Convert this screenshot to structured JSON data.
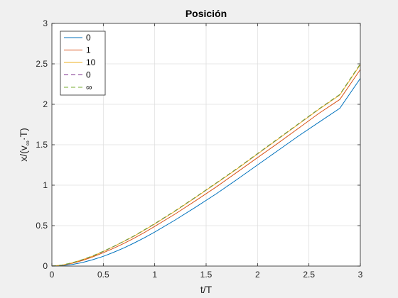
{
  "chart_data": {
    "type": "line",
    "title": "Posición",
    "xlabel": "t/T",
    "ylabel_main": "x/(v",
    "ylabel_sub": "∞",
    "ylabel_tail": "·T)",
    "xlim": [
      0,
      3
    ],
    "ylim": [
      0,
      3
    ],
    "xticks": [
      0,
      0.5,
      1,
      1.5,
      2,
      2.5,
      3
    ],
    "xtick_labels": [
      "0",
      "0.5",
      "1",
      "1.5",
      "2",
      "2.5",
      "3"
    ],
    "yticks": [
      0,
      0.5,
      1,
      1.5,
      2,
      2.5,
      3
    ],
    "ytick_labels": [
      "0",
      "0.5",
      "1",
      "1.5",
      "2",
      "2.5",
      "3"
    ],
    "grid": true,
    "legend_position": "top-left",
    "x": [
      0,
      0.1,
      0.2,
      0.3,
      0.4,
      0.5,
      0.6,
      0.7,
      0.8,
      0.9,
      1.0,
      1.2,
      1.4,
      1.6,
      1.8,
      2.0,
      2.2,
      2.4,
      2.6,
      2.8,
      3.0
    ],
    "series": [
      {
        "name": "0",
        "color": "#0072bd",
        "dash": false,
        "values": [
          0,
          0.005,
          0.02,
          0.045,
          0.08,
          0.12,
          0.17,
          0.225,
          0.285,
          0.35,
          0.42,
          0.57,
          0.73,
          0.895,
          1.07,
          1.25,
          1.43,
          1.61,
          1.78,
          1.95,
          2.32
        ]
      },
      {
        "name": "1",
        "color": "#d95319",
        "dash": false,
        "values": [
          0,
          0.01,
          0.035,
          0.07,
          0.115,
          0.165,
          0.22,
          0.28,
          0.345,
          0.415,
          0.49,
          0.645,
          0.81,
          0.98,
          1.16,
          1.34,
          1.52,
          1.705,
          1.89,
          2.06,
          2.43
        ]
      },
      {
        "name": "10",
        "color": "#edb120",
        "dash": false,
        "values": [
          0,
          0.012,
          0.04,
          0.08,
          0.125,
          0.18,
          0.24,
          0.305,
          0.37,
          0.445,
          0.52,
          0.68,
          0.85,
          1.025,
          1.2,
          1.385,
          1.57,
          1.755,
          1.94,
          2.115,
          2.49
        ]
      },
      {
        "name": "0",
        "color": "#7e2f8e",
        "dash": true,
        "values": [
          0,
          0.012,
          0.04,
          0.08,
          0.126,
          0.181,
          0.241,
          0.306,
          0.372,
          0.447,
          0.523,
          0.683,
          0.853,
          1.028,
          1.204,
          1.389,
          1.574,
          1.759,
          1.944,
          2.12,
          2.5
        ]
      },
      {
        "name": "∞",
        "color": "#77ac30",
        "dash": true,
        "values": [
          0,
          0.013,
          0.042,
          0.082,
          0.128,
          0.183,
          0.243,
          0.308,
          0.374,
          0.449,
          0.525,
          0.685,
          0.855,
          1.03,
          1.206,
          1.391,
          1.576,
          1.761,
          1.946,
          2.122,
          2.5
        ]
      }
    ]
  }
}
